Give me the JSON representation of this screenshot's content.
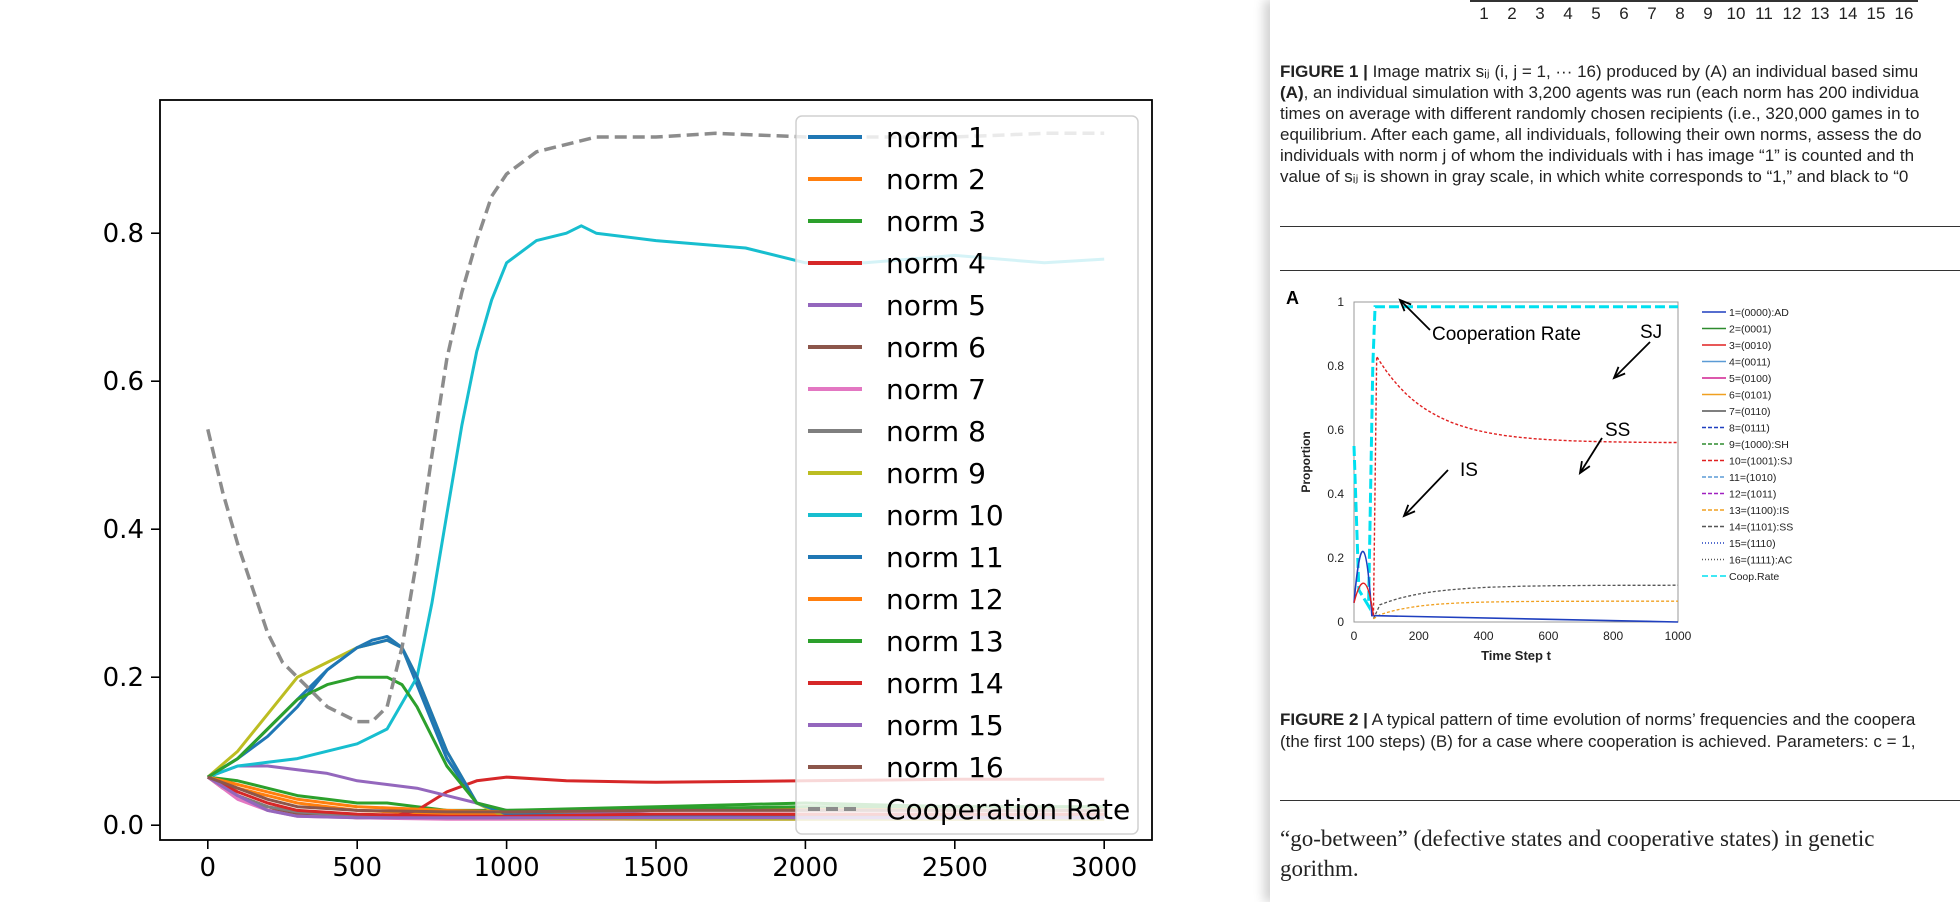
{
  "chart_data": {
    "type": "line",
    "xlabel": "",
    "ylabel": "",
    "title": "",
    "xlim": [
      -160,
      3160
    ],
    "ylim": [
      -0.02,
      0.98
    ],
    "xticks": [
      0,
      500,
      1000,
      1500,
      2000,
      2500,
      3000
    ],
    "yticks": [
      0.0,
      0.2,
      0.4,
      0.6,
      0.8
    ],
    "grid": false,
    "legend_position": "right",
    "series": [
      {
        "name": "norm 1",
        "color": "#1f77b4",
        "style": "solid",
        "x": [
          0,
          100,
          200,
          300,
          400,
          500,
          550,
          600,
          650,
          700,
          800,
          900,
          1000,
          1500,
          2000,
          2500,
          3000
        ],
        "y": [
          0.065,
          0.09,
          0.12,
          0.16,
          0.21,
          0.24,
          0.25,
          0.255,
          0.24,
          0.19,
          0.09,
          0.03,
          0.015,
          0.012,
          0.012,
          0.012,
          0.012
        ]
      },
      {
        "name": "norm 2",
        "color": "#ff7f0e",
        "style": "solid",
        "x": [
          0,
          100,
          200,
          300,
          500,
          800,
          1000,
          1500,
          2000,
          2500,
          3000
        ],
        "y": [
          0.065,
          0.05,
          0.04,
          0.03,
          0.02,
          0.015,
          0.015,
          0.02,
          0.022,
          0.02,
          0.02
        ]
      },
      {
        "name": "norm 3",
        "color": "#2ca02c",
        "style": "solid",
        "x": [
          0,
          100,
          200,
          300,
          400,
          500,
          600,
          700,
          800,
          1000,
          1500,
          2000,
          2500,
          3000
        ],
        "y": [
          0.065,
          0.06,
          0.05,
          0.04,
          0.035,
          0.03,
          0.03,
          0.025,
          0.02,
          0.02,
          0.025,
          0.03,
          0.025,
          0.025
        ]
      },
      {
        "name": "norm 4",
        "color": "#d62728",
        "style": "solid",
        "x": [
          0,
          50,
          100,
          200,
          300,
          500,
          600,
          700,
          800,
          900,
          1000,
          1200,
          1500,
          2000,
          2500,
          3000
        ],
        "y": [
          0.065,
          0.05,
          0.04,
          0.025,
          0.015,
          0.01,
          0.01,
          0.02,
          0.045,
          0.06,
          0.065,
          0.06,
          0.058,
          0.06,
          0.062,
          0.062
        ]
      },
      {
        "name": "norm 5",
        "color": "#9467bd",
        "style": "solid",
        "x": [
          0,
          100,
          200,
          300,
          400,
          500,
          600,
          700,
          800,
          900,
          1000,
          1500,
          2000,
          2500,
          3000
        ],
        "y": [
          0.065,
          0.08,
          0.08,
          0.075,
          0.07,
          0.06,
          0.055,
          0.05,
          0.04,
          0.03,
          0.02,
          0.015,
          0.015,
          0.015,
          0.015
        ]
      },
      {
        "name": "norm 6",
        "color": "#8c564b",
        "style": "solid",
        "x": [
          0,
          100,
          200,
          300,
          500,
          800,
          1000,
          1500,
          2000,
          2500,
          3000
        ],
        "y": [
          0.065,
          0.04,
          0.02,
          0.015,
          0.01,
          0.01,
          0.01,
          0.012,
          0.012,
          0.012,
          0.012
        ]
      },
      {
        "name": "norm 7",
        "color": "#e377c2",
        "style": "solid",
        "x": [
          0,
          100,
          200,
          300,
          500,
          800,
          1000,
          1500,
          2000,
          2500,
          3000
        ],
        "y": [
          0.065,
          0.035,
          0.02,
          0.012,
          0.01,
          0.008,
          0.008,
          0.008,
          0.008,
          0.008,
          0.008
        ]
      },
      {
        "name": "norm 8",
        "color": "#7f7f7f",
        "style": "solid",
        "x": [
          0,
          100,
          200,
          300,
          500,
          800,
          1000,
          1500,
          2000,
          2500,
          3000
        ],
        "y": [
          0.065,
          0.04,
          0.025,
          0.018,
          0.012,
          0.01,
          0.01,
          0.01,
          0.01,
          0.01,
          0.01
        ]
      },
      {
        "name": "norm 9",
        "color": "#bcbd22",
        "style": "solid",
        "x": [
          0,
          100,
          200,
          300,
          400,
          500,
          550,
          600,
          650,
          700,
          800,
          900,
          1000,
          1500,
          2000,
          2500,
          3000
        ],
        "y": [
          0.065,
          0.1,
          0.15,
          0.2,
          0.22,
          0.24,
          0.245,
          0.25,
          0.24,
          0.2,
          0.1,
          0.03,
          0.01,
          0.008,
          0.008,
          0.008,
          0.008
        ]
      },
      {
        "name": "norm 10",
        "color": "#17becf",
        "style": "solid",
        "x": [
          0,
          100,
          200,
          300,
          400,
          500,
          600,
          700,
          750,
          800,
          850,
          900,
          950,
          1000,
          1100,
          1200,
          1250,
          1300,
          1500,
          1800,
          2000,
          2200,
          2500,
          2800,
          3000
        ],
        "y": [
          0.065,
          0.08,
          0.085,
          0.09,
          0.1,
          0.11,
          0.13,
          0.2,
          0.3,
          0.42,
          0.54,
          0.64,
          0.71,
          0.76,
          0.79,
          0.8,
          0.81,
          0.8,
          0.79,
          0.78,
          0.76,
          0.76,
          0.77,
          0.76,
          0.765
        ]
      },
      {
        "name": "norm 11",
        "color": "#1f77b4",
        "style": "solid",
        "x": [
          0,
          100,
          200,
          300,
          400,
          500,
          600,
          650,
          700,
          800,
          900,
          1000,
          1500,
          2000,
          2500,
          3000
        ],
        "y": [
          0.065,
          0.09,
          0.13,
          0.17,
          0.21,
          0.24,
          0.25,
          0.24,
          0.2,
          0.1,
          0.03,
          0.015,
          0.012,
          0.01,
          0.01,
          0.01
        ]
      },
      {
        "name": "norm 12",
        "color": "#ff7f0e",
        "style": "solid",
        "x": [
          0,
          100,
          200,
          300,
          500,
          800,
          1000,
          1500,
          2000,
          2500,
          3000
        ],
        "y": [
          0.065,
          0.055,
          0.045,
          0.035,
          0.025,
          0.02,
          0.018,
          0.02,
          0.025,
          0.02,
          0.02
        ]
      },
      {
        "name": "norm 13",
        "color": "#2ca02c",
        "style": "solid",
        "x": [
          0,
          100,
          200,
          300,
          400,
          500,
          600,
          650,
          700,
          800,
          900,
          1000,
          1500,
          2000,
          2500,
          3000
        ],
        "y": [
          0.065,
          0.09,
          0.13,
          0.17,
          0.19,
          0.2,
          0.2,
          0.19,
          0.16,
          0.08,
          0.03,
          0.02,
          0.022,
          0.025,
          0.025,
          0.025
        ]
      },
      {
        "name": "norm 14",
        "color": "#d62728",
        "style": "solid",
        "x": [
          0,
          100,
          200,
          300,
          500,
          800,
          1000,
          1500,
          2000,
          2500,
          3000
        ],
        "y": [
          0.065,
          0.045,
          0.03,
          0.02,
          0.015,
          0.012,
          0.012,
          0.015,
          0.015,
          0.015,
          0.015
        ]
      },
      {
        "name": "norm 15",
        "color": "#9467bd",
        "style": "solid",
        "x": [
          0,
          100,
          200,
          300,
          500,
          800,
          1000,
          1500,
          2000,
          2500,
          3000
        ],
        "y": [
          0.065,
          0.04,
          0.02,
          0.012,
          0.01,
          0.01,
          0.01,
          0.01,
          0.01,
          0.01,
          0.01
        ]
      },
      {
        "name": "norm 16",
        "color": "#8c564b",
        "style": "solid",
        "x": [
          0,
          100,
          200,
          300,
          500,
          800,
          1000,
          1500,
          2000,
          2500,
          3000
        ],
        "y": [
          0.065,
          0.05,
          0.035,
          0.025,
          0.02,
          0.018,
          0.018,
          0.02,
          0.02,
          0.02,
          0.02
        ]
      },
      {
        "name": "Cooperation Rate",
        "color": "#8c8c8c",
        "style": "dashed",
        "x": [
          0,
          50,
          100,
          150,
          200,
          250,
          300,
          350,
          400,
          450,
          500,
          550,
          600,
          650,
          700,
          750,
          800,
          850,
          900,
          950,
          1000,
          1100,
          1200,
          1300,
          1500,
          1700,
          2000,
          2200,
          2500,
          2800,
          3000
        ],
        "y": [
          0.535,
          0.45,
          0.38,
          0.32,
          0.26,
          0.22,
          0.2,
          0.18,
          0.16,
          0.15,
          0.14,
          0.14,
          0.16,
          0.24,
          0.36,
          0.5,
          0.63,
          0.72,
          0.79,
          0.85,
          0.88,
          0.91,
          0.92,
          0.93,
          0.93,
          0.935,
          0.93,
          0.93,
          0.93,
          0.935,
          0.935
        ]
      }
    ]
  },
  "doc": {
    "tick_numbers": [
      "1",
      "2",
      "3",
      "4",
      "5",
      "6",
      "7",
      "8",
      "9",
      "10",
      "11",
      "12",
      "13",
      "14",
      "15",
      "16"
    ],
    "fig1_caption": [
      {
        "bold": "FIGURE 1 |",
        "text": " Image matrix sᵢⱼ (i, j = 1, ··· 16) produced by (A) an individual based simu"
      },
      {
        "bold": "(A)",
        "text": ", an individual simulation with 3,200 agents was run (each norm has 200 individua"
      },
      {
        "bold": "",
        "text": "times on average with different randomly chosen recipients (i.e., 320,000 games in to"
      },
      {
        "bold": "",
        "text": "equilibrium. After each game, all individuals, following their own norms, assess the do"
      },
      {
        "bold": "",
        "text": "individuals with norm j of whom the individuals with i has image “1” is counted and th"
      },
      {
        "bold": "",
        "text": "value of sᵢⱼ is shown in gray scale, in which white corresponds to “1,” and black to “0"
      }
    ],
    "panel_label": "A",
    "fig2": {
      "ylabel": "Proportion",
      "xlabel": "Time Step t",
      "yticks": [
        "0",
        "0.2",
        "0.4",
        "0.6",
        "0.8",
        "1"
      ],
      "xticks": [
        "0",
        "200",
        "400",
        "600",
        "800",
        "1000"
      ],
      "annotations": [
        "Cooperation Rate",
        "SJ",
        "IS",
        "SS"
      ],
      "legend": [
        {
          "label": "1=(0000):AD",
          "color": "#1f3fbf",
          "dash": ""
        },
        {
          "label": "2=(0001)",
          "color": "#2e8b2e",
          "dash": ""
        },
        {
          "label": "3=(0010)",
          "color": "#e02020",
          "dash": ""
        },
        {
          "label": "4=(0011)",
          "color": "#5b9bd5",
          "dash": ""
        },
        {
          "label": "5=(0100)",
          "color": "#d02090",
          "dash": ""
        },
        {
          "label": "6=(0101)",
          "color": "#f0a020",
          "dash": ""
        },
        {
          "label": "7=(0110)",
          "color": "#555555",
          "dash": ""
        },
        {
          "label": "8=(0111)",
          "color": "#1f3fbf",
          "dash": "4,2"
        },
        {
          "label": "9=(1000):SH",
          "color": "#2e8b2e",
          "dash": "4,2"
        },
        {
          "label": "10=(1001):SJ",
          "color": "#e02020",
          "dash": "4,2"
        },
        {
          "label": "11=(1010)",
          "color": "#5b9bd5",
          "dash": "4,2"
        },
        {
          "label": "12=(1011)",
          "color": "#a020c0",
          "dash": "4,2"
        },
        {
          "label": "13=(1100):IS",
          "color": "#f0a020",
          "dash": "4,2"
        },
        {
          "label": "14=(1101):SS",
          "color": "#555555",
          "dash": "4,2"
        },
        {
          "label": "15=(1110)",
          "color": "#1f3fbf",
          "dash": "1,2"
        },
        {
          "label": "16=(1111):AC",
          "color": "#555555",
          "dash": "1,2"
        },
        {
          "label": "Coop.Rate",
          "color": "#00e0f0",
          "dash": "6,3"
        }
      ]
    },
    "fig2_caption": [
      {
        "bold": "FIGURE 2 |",
        "text": " A typical pattern of time evolution of norms’ frequencies and the coopera"
      },
      {
        "bold": "",
        "text": "(the first 100 steps) (B) for a case where cooperation is achieved. Parameters: c = 1,"
      }
    ],
    "body_text": [
      "“go-between” (defective states and cooperative states) in genetic",
      "gorithm."
    ]
  }
}
